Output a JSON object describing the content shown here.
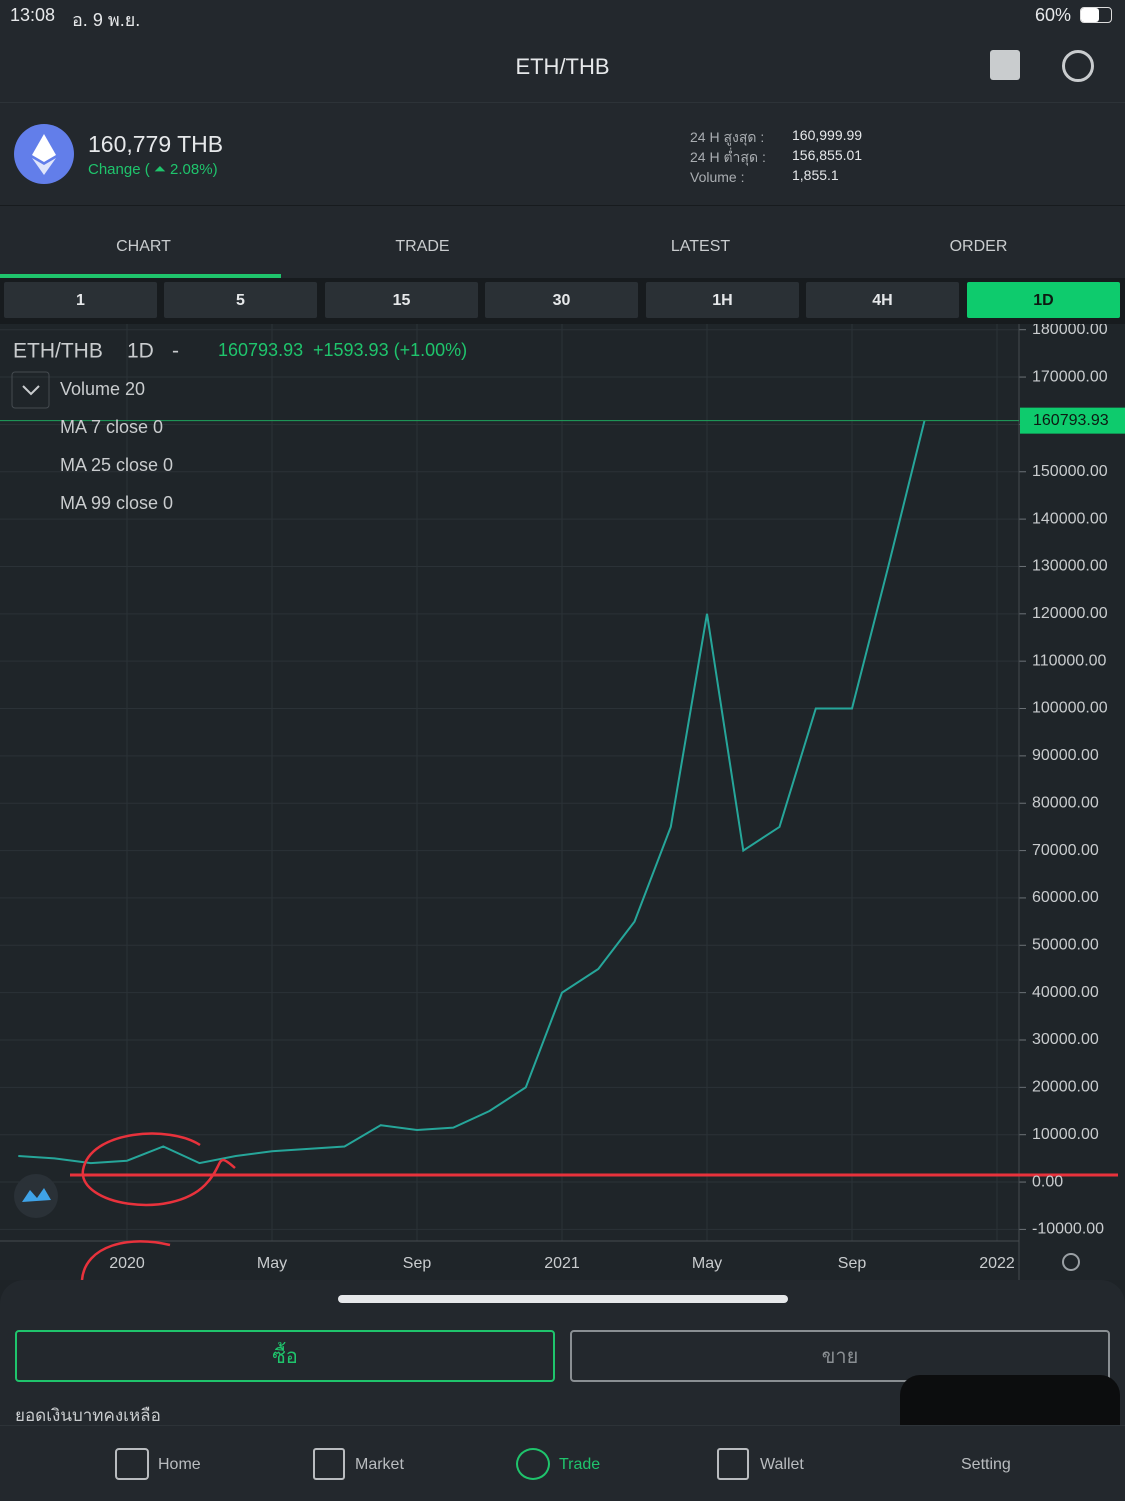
{
  "status_bar": {
    "time": "13:08",
    "date": "อ. 9 พ.ย.",
    "battery": "60%"
  },
  "header": {
    "title": "ETH/THB"
  },
  "ticker": {
    "price": "160,779 THB",
    "change": "Change ( ⏶ 2.08%)",
    "high_label": "24 H สูงสุด :",
    "high": "160,999.99",
    "low_label": "24 H ต่ำสุด :",
    "low": "156,855.01",
    "volume_label": "Volume :",
    "volume": "1,855.1"
  },
  "tabs": [
    "CHART",
    "TRADE",
    "LATEST",
    "ORDER"
  ],
  "timeframes": [
    "1",
    "5",
    "15",
    "30",
    "1H",
    "4H",
    "1D"
  ],
  "chart_data": {
    "type": "line",
    "symbol": "ETH/THB",
    "interval": "1D",
    "separator": "-",
    "last_text": "160793.93",
    "change_text": "+1593.93 (+1.00%)",
    "indicators": [
      "Volume 20",
      "MA 7 close 0",
      "MA 25 close 0",
      "MA 99 close 0"
    ],
    "color": "#26a69a",
    "grid": true,
    "categories": [
      null,
      null,
      null,
      "2020",
      null,
      null,
      null,
      "May",
      null,
      null,
      null,
      "Sep",
      null,
      null,
      null,
      "2021",
      null,
      null,
      null,
      "May",
      null,
      null,
      null,
      "Sep",
      null,
      null,
      null,
      "2022"
    ],
    "values": [
      5500,
      5000,
      4000,
      4500,
      7500,
      4000,
      5500,
      6500,
      7000,
      7500,
      12000,
      11000,
      11500,
      15000,
      20000,
      40000,
      45000,
      55000,
      75000,
      120000,
      70000,
      75000,
      100000,
      100000,
      130000,
      160793.93,
      null,
      null
    ],
    "ylim": [
      -10000,
      180000
    ],
    "yticks": [
      {
        "value": -10000,
        "label": "-10000.00"
      },
      {
        "value": 0,
        "label": "0.00"
      },
      {
        "value": 10000,
        "label": "10000.00"
      },
      {
        "value": 20000,
        "label": "20000.00"
      },
      {
        "value": 30000,
        "label": "30000.00"
      },
      {
        "value": 40000,
        "label": "40000.00"
      },
      {
        "value": 50000,
        "label": "50000.00"
      },
      {
        "value": 60000,
        "label": "60000.00"
      },
      {
        "value": 70000,
        "label": "70000.00"
      },
      {
        "value": 80000,
        "label": "80000.00"
      },
      {
        "value": 90000,
        "label": "90000.00"
      },
      {
        "value": 100000,
        "label": "100000.00"
      },
      {
        "value": 110000,
        "label": "110000.00"
      },
      {
        "value": 120000,
        "label": "120000.00"
      },
      {
        "value": 130000,
        "label": "130000.00"
      },
      {
        "value": 140000,
        "label": "140000.00"
      },
      {
        "value": 150000,
        "label": "150000.00"
      },
      {
        "value": 160000,
        "label": "160000.00"
      },
      {
        "value": 170000,
        "label": "170000.00"
      },
      {
        "value": 180000,
        "label": "180000.00"
      }
    ],
    "last_price": {
      "value": 160793.93,
      "label": "160793.93"
    }
  },
  "actions": {
    "buy": "ซื้อ",
    "sell": "ขาย",
    "balance": "ยอดเงินบาทคงเหลือ"
  },
  "nav": [
    "Home",
    "Market",
    "Trade",
    "Wallet",
    "Setting"
  ]
}
